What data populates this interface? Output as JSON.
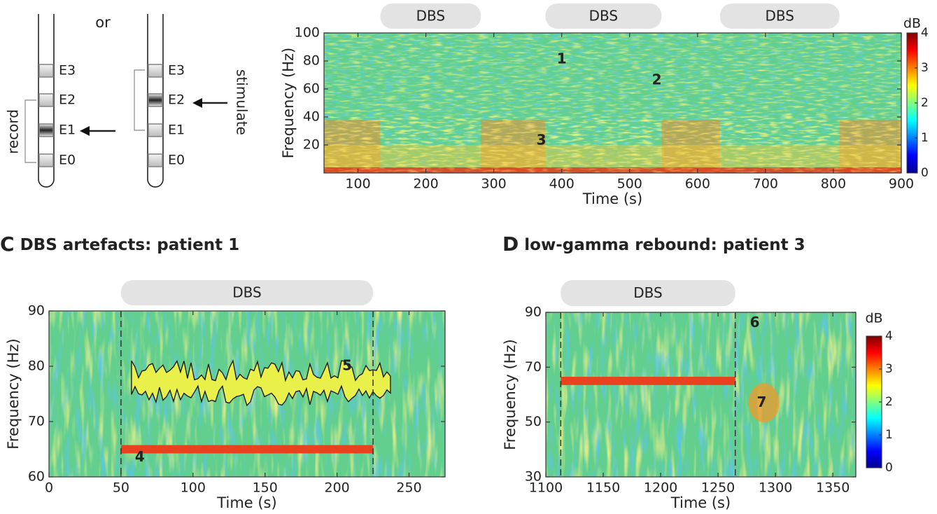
{
  "electrode_diagram": {
    "separator": "or",
    "left": {
      "contacts": [
        "E3",
        "E2",
        "E1",
        "E0"
      ],
      "label": "record"
    },
    "right": {
      "contacts": [
        "E3",
        "E2",
        "E1",
        "E0"
      ],
      "label": "stimulate"
    }
  },
  "chart_data": [
    {
      "type": "heatmap",
      "xlabel": "Time (s)",
      "ylabel": "Frequency (Hz)",
      "xlim": [
        50,
        900
      ],
      "xticks": [
        100,
        200,
        300,
        400,
        500,
        600,
        700,
        800,
        900
      ],
      "ylim": [
        0,
        100
      ],
      "yticks": [
        20,
        40,
        60,
        80,
        100
      ],
      "dbs_periods": [
        {
          "label": "DBS",
          "start": 133,
          "end": 281
        },
        {
          "label": "DBS",
          "start": 376,
          "end": 547
        },
        {
          "label": "DBS",
          "start": 633,
          "end": 809
        }
      ],
      "annotations": [
        {
          "text": "1",
          "x": 400,
          "y": 81
        },
        {
          "text": "2",
          "x": 540,
          "y": 66
        },
        {
          "text": "3",
          "x": 370,
          "y": 23
        }
      ],
      "colorbar": {
        "label": "dB",
        "lim": [
          0,
          4
        ],
        "ticks": [
          0,
          1,
          2,
          3,
          4
        ]
      }
    },
    {
      "type": "heatmap",
      "panel": "C",
      "title": "DBS artefacts: patient 1",
      "xlabel": "Time (s)",
      "ylabel": "Frequency (Hz)",
      "xlim": [
        0,
        275
      ],
      "xticks": [
        0,
        50,
        100,
        150,
        200,
        250
      ],
      "ylim": [
        60,
        90
      ],
      "yticks": [
        60,
        70,
        80,
        90
      ],
      "dbs_periods": [
        {
          "label": "DBS",
          "start": 50,
          "end": 225
        }
      ],
      "stim_frequency": 65,
      "annotations": [
        {
          "text": "4",
          "x": 63,
          "y": 63.5
        },
        {
          "text": "5",
          "x": 207,
          "y": 80
        }
      ]
    },
    {
      "type": "heatmap",
      "panel": "D",
      "title": "low-gamma rebound: patient 3",
      "xlabel": "Time (s)",
      "ylabel": "Frequency (Hz)",
      "xlim": [
        1100,
        1370
      ],
      "xticks": [
        1100,
        1150,
        1200,
        1250,
        1300,
        1350
      ],
      "ylim": [
        30,
        90
      ],
      "yticks": [
        30,
        50,
        70,
        90
      ],
      "dbs_periods": [
        {
          "label": "DBS",
          "start": 1113,
          "end": 1265
        }
      ],
      "stim_frequency": 65,
      "annotations": [
        {
          "text": "6",
          "x": 1282,
          "y": 86
        },
        {
          "text": "7",
          "x": 1288,
          "y": 57
        }
      ],
      "colorbar": {
        "label": "dB",
        "lim": [
          0,
          4
        ],
        "ticks": [
          0,
          1,
          2,
          3,
          4
        ]
      }
    }
  ]
}
